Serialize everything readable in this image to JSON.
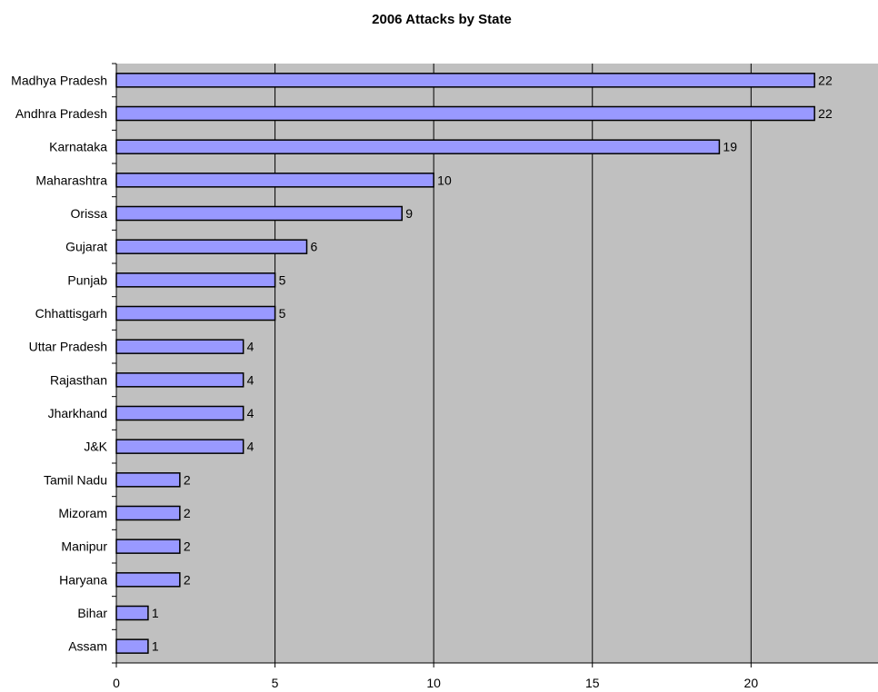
{
  "chart_data": {
    "type": "bar",
    "orientation": "horizontal",
    "title": "2006 Attacks by State",
    "xlabel": "",
    "ylabel": "",
    "categories": [
      "Madhya Pradesh",
      "Andhra Pradesh",
      "Karnataka",
      "Maharashtra",
      "Orissa",
      "Gujarat",
      "Punjab",
      "Chhattisgarh",
      "Uttar Pradesh",
      "Rajasthan",
      "Jharkhand",
      "J&K",
      "Tamil Nadu",
      "Mizoram",
      "Manipur",
      "Haryana",
      "Bihar",
      "Assam"
    ],
    "values": [
      22,
      22,
      19,
      10,
      9,
      6,
      5,
      5,
      4,
      4,
      4,
      4,
      2,
      2,
      2,
      2,
      1,
      1
    ],
    "xlim": [
      0,
      24
    ],
    "xticks": [
      0,
      5,
      10,
      15,
      20
    ],
    "grid": "vertical",
    "legend": "none",
    "data_labels": true,
    "colors": {
      "bar_fill": "#9999ff",
      "bar_stroke": "#000000",
      "plot_background": "#c0c0c0",
      "gridline": "#000000"
    }
  }
}
